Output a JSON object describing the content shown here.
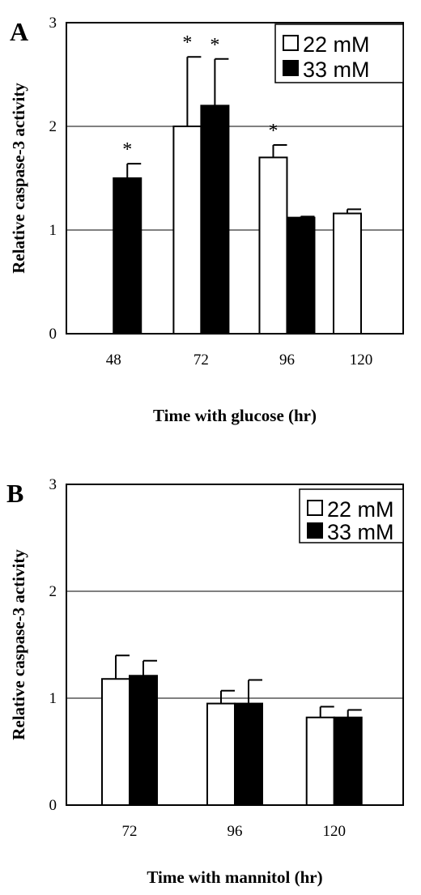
{
  "chart_data": [
    {
      "type": "bar",
      "panel_label": "A",
      "ylabel": "Relative caspase-3 activity",
      "xlabel": "Time with glucose (hr)",
      "ylim": [
        0,
        3
      ],
      "yticks": [
        "0",
        "1",
        "2",
        "3"
      ],
      "grid": "horizontal",
      "legend_position": "top-right",
      "categories": [
        "48",
        "72",
        "96",
        "120"
      ],
      "series": [
        {
          "name": "22 mM",
          "fill": "#ffffff",
          "values": [
            null,
            2.0,
            1.7,
            1.16
          ],
          "errors": [
            null,
            0.67,
            0.12,
            0.04
          ],
          "significant": [
            false,
            true,
            true,
            false
          ]
        },
        {
          "name": "33 mM",
          "fill": "#000000",
          "values": [
            1.5,
            2.2,
            1.12,
            null
          ],
          "errors": [
            0.14,
            0.45,
            0.01,
            null
          ],
          "significant": [
            true,
            true,
            false,
            false
          ]
        }
      ],
      "significance_marker": "*"
    },
    {
      "type": "bar",
      "panel_label": "B",
      "ylabel": "Relative caspase-3 activity",
      "xlabel": "Time with mannitol (hr)",
      "ylim": [
        0,
        3
      ],
      "yticks": [
        "0",
        "1",
        "2",
        "3"
      ],
      "grid": "horizontal",
      "legend_position": "top-right",
      "categories": [
        "72",
        "96",
        "120"
      ],
      "series": [
        {
          "name": "22 mM",
          "fill": "#ffffff",
          "values": [
            1.18,
            0.95,
            0.82
          ],
          "errors": [
            0.22,
            0.12,
            0.1
          ],
          "significant": [
            false,
            false,
            false
          ]
        },
        {
          "name": "33 mM",
          "fill": "#000000",
          "values": [
            1.21,
            0.95,
            0.82
          ],
          "errors": [
            0.14,
            0.22,
            0.07
          ],
          "significant": [
            false,
            false,
            false
          ]
        }
      ],
      "significance_marker": "*"
    }
  ]
}
